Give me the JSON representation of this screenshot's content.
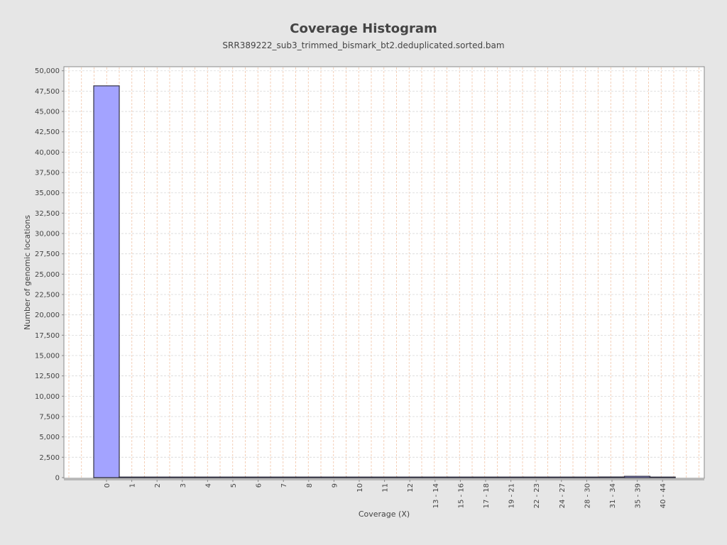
{
  "chart_data": {
    "type": "bar",
    "title": "Coverage Histogram",
    "subtitle": "SRR389222_sub3_trimmed_bismark_bt2.deduplicated.sorted.bam",
    "xlabel": "Coverage (X)",
    "ylabel": "Number of genomic locations",
    "categories": [
      "0",
      "1",
      "2",
      "3",
      "4",
      "5",
      "6",
      "7",
      "8",
      "9",
      "10",
      "11",
      "12",
      "13 - 14",
      "15 - 16",
      "17 - 18",
      "19 - 21",
      "22 - 23",
      "24 - 27",
      "28 - 30",
      "31 - 34",
      "35 - 39",
      "40 - 44"
    ],
    "values": [
      48150,
      20,
      15,
      12,
      10,
      10,
      8,
      8,
      8,
      8,
      8,
      8,
      8,
      10,
      10,
      10,
      12,
      12,
      15,
      15,
      80,
      160,
      60
    ],
    "ylim": [
      0,
      50500
    ],
    "yticks": [
      0,
      2500,
      5000,
      7500,
      10000,
      12500,
      15000,
      17500,
      20000,
      22500,
      25000,
      27500,
      30000,
      32500,
      35000,
      37500,
      40000,
      42500,
      45000,
      47500,
      50000
    ],
    "ytick_labels": [
      "0",
      "2,500",
      "5,000",
      "7,500",
      "10,000",
      "12,500",
      "15,000",
      "17,500",
      "20,000",
      "22,500",
      "25,000",
      "27,500",
      "30,000",
      "32,500",
      "35,000",
      "37,500",
      "40,000",
      "42,500",
      "45,000",
      "47,500",
      "50,000"
    ],
    "grid": true,
    "colors": {
      "bar_fill": "#a3a3ff",
      "bar_stroke": "#333344",
      "grid_vertical": "#f2c4a6",
      "grid_horizontal": "#d9d9d9",
      "plot_background": "#ffffff",
      "page_background": "#e6e6e6"
    }
  }
}
